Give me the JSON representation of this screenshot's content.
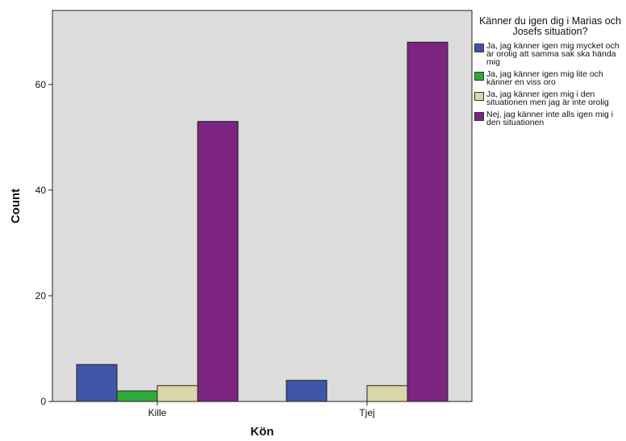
{
  "chart_data": {
    "type": "bar",
    "categories": [
      "Kille",
      "Tjej"
    ],
    "series": [
      {
        "name": "Ja, jag känner igen mig mycket och är orolig att samma sak ska hända mig",
        "color": "#3f56a8",
        "values": [
          7,
          4
        ]
      },
      {
        "name": "Ja, jag känner igen mig lite och känner en viss oro",
        "color": "#2eaa3a",
        "values": [
          2,
          0
        ]
      },
      {
        "name": "Ja, jag känner igen mig i den situationen men jag är inte orolig",
        "color": "#dcd5a8",
        "values": [
          3,
          3
        ]
      },
      {
        "name": "Nej, jag känner inte alls igen mig i den situationen",
        "color": "#7c2580",
        "values": [
          53,
          68
        ]
      }
    ],
    "xlabel": "Kön",
    "ylabel": "Count",
    "ylim": [
      0,
      74
    ],
    "yticks": [
      0,
      20,
      40,
      60
    ],
    "legend_title": "Känner du igen dig i Marias och Josefs situation?",
    "legend_position": "right",
    "grid": false,
    "plot_background": "#dcdcdc"
  }
}
